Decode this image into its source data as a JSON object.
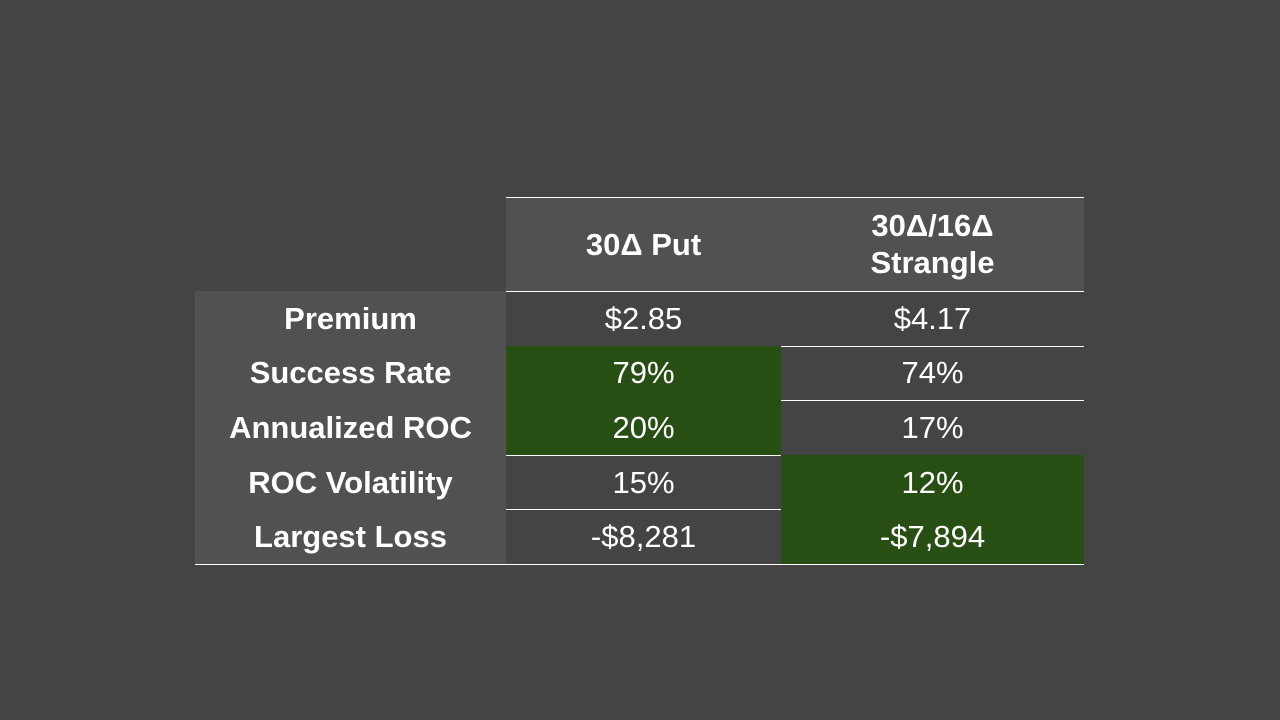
{
  "table": {
    "columns": [
      "30Δ Put",
      "30Δ/16Δ Strangle"
    ],
    "rows": [
      {
        "label": "Premium",
        "values": [
          "$2.85",
          "$4.17"
        ],
        "highlighted": [
          false,
          false
        ]
      },
      {
        "label": "Success Rate",
        "values": [
          "79%",
          "74%"
        ],
        "highlighted": [
          true,
          false
        ]
      },
      {
        "label": "Annualized ROC",
        "values": [
          "20%",
          "17%"
        ],
        "highlighted": [
          true,
          false
        ]
      },
      {
        "label": "ROC Volatility",
        "values": [
          "15%",
          "12%"
        ],
        "highlighted": [
          false,
          true
        ]
      },
      {
        "label": "Largest Loss",
        "values": [
          "-$8,281",
          "-$7,894"
        ],
        "highlighted": [
          false,
          true
        ]
      }
    ],
    "highlight_color": "#274e13",
    "header_color": "#515151"
  }
}
